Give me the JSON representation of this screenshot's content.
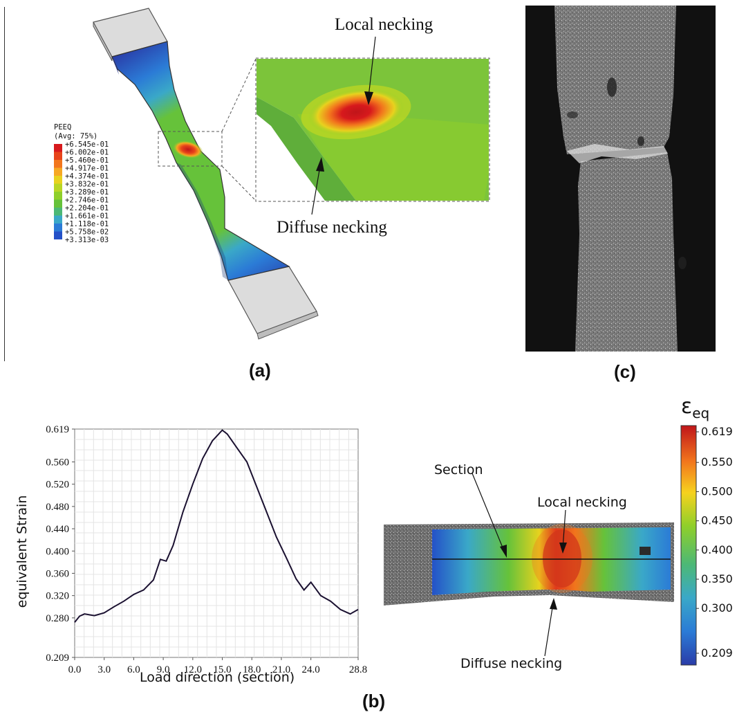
{
  "panels": {
    "a": {
      "label": "(a)"
    },
    "b": {
      "label": "(b)"
    },
    "c": {
      "label": "(c)"
    }
  },
  "fe_model": {
    "legend_title": "PEEQ",
    "legend_subtitle": "(Avg: 75%)",
    "legend_values": [
      "+6.545e-01",
      "+6.002e-01",
      "+5.460e-01",
      "+4.917e-01",
      "+4.374e-01",
      "+3.832e-01",
      "+3.289e-01",
      "+2.746e-01",
      "+2.204e-01",
      "+1.661e-01",
      "+1.118e-01",
      "+5.758e-02",
      "+3.313e-03"
    ],
    "legend_colors": [
      "#d7191c",
      "#e8441a",
      "#f2761d",
      "#f6a823",
      "#e8d21e",
      "#b9d624",
      "#8fcf2a",
      "#66c23a",
      "#4cb876",
      "#3aa8c8",
      "#2b7bd6",
      "#2451c8",
      "#2a3ca8"
    ],
    "callout_local": "Local necking",
    "callout_diffuse": "Diffuse necking"
  },
  "dic_map": {
    "colorbar_title": "ε",
    "colorbar_title_sub": "eq",
    "colorbar_ticks": [
      "0.619",
      "0.550",
      "0.500",
      "0.450",
      "0.400",
      "0.350",
      "0.300",
      "0.209"
    ],
    "label_section": "Section",
    "label_local": "Local necking",
    "label_diffuse": "Diffuse necking"
  },
  "chart_data": {
    "type": "line",
    "xlabel": "Load direction (section)",
    "ylabel": "equivalent Strain",
    "x_ticks": [
      "0.0",
      "3.0",
      "6.0",
      "9.0",
      "12.0",
      "15.0",
      "18.0",
      "21.0",
      "24.0",
      "28.8"
    ],
    "y_ticks": [
      "0.619",
      "0.560",
      "0.520",
      "0.480",
      "0.440",
      "0.400",
      "0.360",
      "0.320",
      "0.280",
      "0.209"
    ],
    "xlim": [
      0,
      28.8
    ],
    "ylim": [
      0.209,
      0.619
    ],
    "grid": true,
    "series": [
      {
        "x": [
          0.0,
          0.5,
          1.0,
          2.0,
          3.0,
          4.0,
          5.0,
          6.0,
          7.0,
          8.0,
          8.7,
          9.3,
          10.0,
          11.0,
          12.0,
          13.0,
          14.0,
          15.0,
          15.5,
          16.5,
          17.5,
          18.5,
          19.5,
          20.5,
          21.5,
          22.5,
          23.3,
          24.0,
          25.0,
          26.0,
          27.0,
          28.0,
          28.8
        ],
        "y": [
          0.272,
          0.283,
          0.287,
          0.284,
          0.289,
          0.3,
          0.31,
          0.322,
          0.33,
          0.348,
          0.385,
          0.382,
          0.41,
          0.47,
          0.52,
          0.566,
          0.598,
          0.617,
          0.61,
          0.585,
          0.56,
          0.515,
          0.47,
          0.425,
          0.388,
          0.35,
          0.33,
          0.344,
          0.32,
          0.31,
          0.295,
          0.287,
          0.295
        ]
      }
    ]
  }
}
